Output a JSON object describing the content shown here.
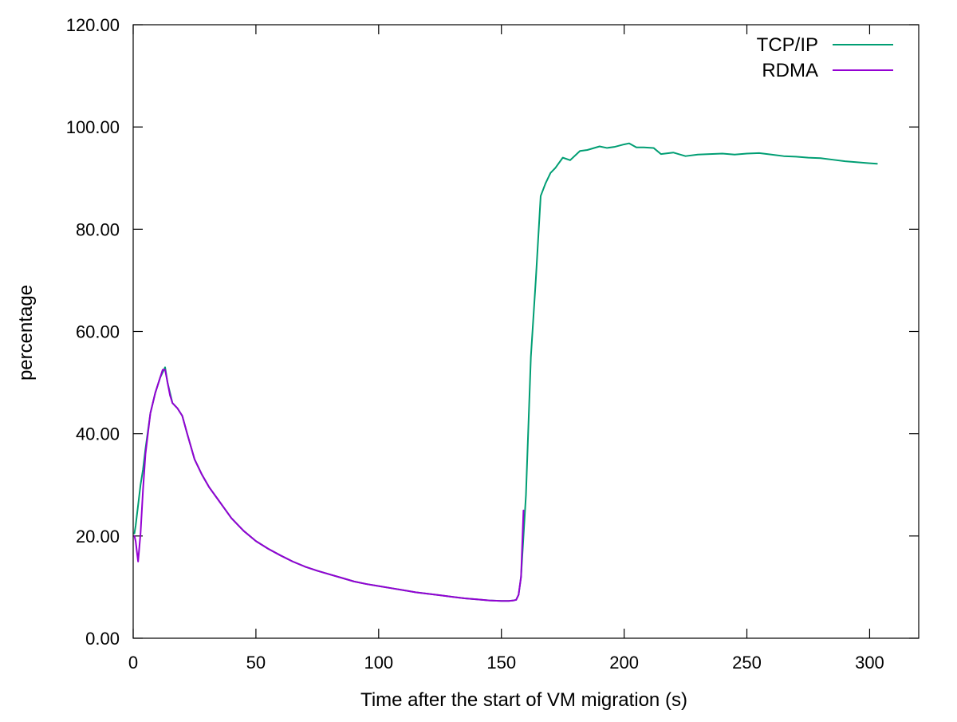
{
  "chart_data": {
    "type": "line",
    "xlabel": "Time after the start of VM migration (s)",
    "ylabel": "percentage",
    "xlim": [
      0,
      320
    ],
    "ylim": [
      0,
      120
    ],
    "xticks": [
      0,
      50,
      100,
      150,
      200,
      250,
      300
    ],
    "yticks": [
      0,
      20,
      40,
      60,
      80,
      100,
      120
    ],
    "xtick_labels": [
      "0",
      "50",
      "100",
      "150",
      "200",
      "250",
      "300"
    ],
    "ytick_labels": [
      "0.00",
      "20.00",
      "40.00",
      "60.00",
      "80.00",
      "100.00",
      "120.00"
    ],
    "grid": false,
    "legend_position": "top-right",
    "series": [
      {
        "name": "TCP/IP",
        "color": "#009e73",
        "x": [
          0.5,
          1,
          2,
          3,
          4,
          5,
          7,
          9,
          11,
          12,
          13,
          14,
          15,
          16,
          17,
          18,
          20,
          22,
          25,
          28,
          31,
          34,
          37,
          40,
          45,
          50,
          55,
          60,
          65,
          70,
          75,
          80,
          85,
          90,
          95,
          100,
          105,
          110,
          115,
          120,
          125,
          130,
          135,
          140,
          145,
          150,
          153,
          155,
          156,
          157,
          158,
          160,
          162,
          164,
          166,
          168,
          170,
          172,
          175,
          178,
          182,
          185,
          190,
          193,
          196,
          200,
          202,
          205,
          208,
          212,
          215,
          220,
          225,
          230,
          235,
          240,
          245,
          250,
          255,
          260,
          265,
          270,
          275,
          280,
          285,
          290,
          295,
          300,
          303
        ],
        "y": [
          20.5,
          22,
          26,
          30,
          33,
          37,
          44,
          48,
          51,
          52,
          53,
          50,
          48,
          46,
          45.5,
          45,
          43.5,
          40,
          35,
          32,
          29.5,
          27.5,
          25.5,
          23.5,
          21,
          19,
          17.5,
          16.2,
          15,
          14,
          13.2,
          12.5,
          11.8,
          11.1,
          10.6,
          10.2,
          9.8,
          9.4,
          9.0,
          8.7,
          8.4,
          8.1,
          7.8,
          7.6,
          7.4,
          7.3,
          7.3,
          7.4,
          7.5,
          8.5,
          12,
          28,
          55,
          70,
          86.5,
          89,
          91,
          92,
          94,
          93.5,
          95.3,
          95.5,
          96.2,
          95.9,
          96.1,
          96.6,
          96.8,
          96.0,
          96.0,
          95.9,
          94.7,
          95.0,
          94.3,
          94.6,
          94.7,
          94.8,
          94.6,
          94.8,
          94.9,
          94.6,
          94.3,
          94.2,
          94.0,
          93.9,
          93.6,
          93.3,
          93.1,
          92.9,
          92.8
        ]
      },
      {
        "name": "RDMA",
        "color": "#9400d3",
        "x": [
          0.5,
          1,
          2,
          3,
          4,
          5,
          7,
          9,
          11,
          12,
          13,
          14,
          15,
          16,
          17,
          18,
          20,
          22,
          25,
          28,
          31,
          34,
          37,
          40,
          45,
          50,
          55,
          60,
          65,
          70,
          75,
          80,
          85,
          90,
          95,
          100,
          105,
          110,
          115,
          120,
          125,
          130,
          135,
          140,
          145,
          150,
          153,
          155,
          156,
          157,
          158,
          159
        ],
        "y": [
          20.0,
          19.0,
          15.0,
          20.5,
          29,
          36,
          44,
          48,
          51,
          52.5,
          52.5,
          50,
          47.5,
          46,
          45.5,
          45,
          43.5,
          40,
          35,
          32,
          29.5,
          27.5,
          25.5,
          23.5,
          21,
          19,
          17.5,
          16.2,
          15,
          14,
          13.2,
          12.5,
          11.8,
          11.1,
          10.6,
          10.2,
          9.8,
          9.4,
          9.0,
          8.7,
          8.4,
          8.1,
          7.8,
          7.6,
          7.4,
          7.3,
          7.3,
          7.4,
          7.5,
          8.5,
          12,
          25
        ]
      }
    ]
  }
}
